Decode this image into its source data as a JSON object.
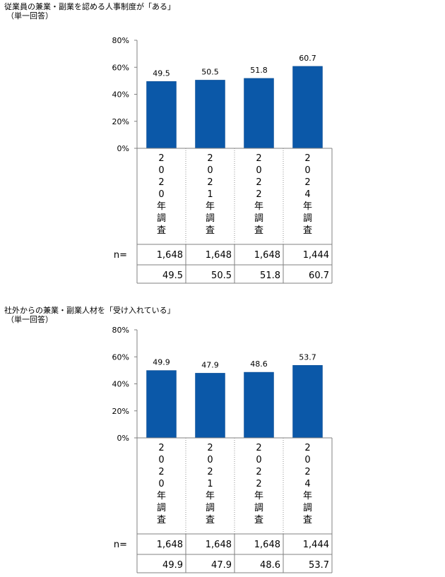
{
  "charts": [
    {
      "title": "従業員の兼業・副業を認める人事制度が「ある」",
      "note": "（単一回答）",
      "n_label": "n=",
      "chart_data": {
        "type": "bar",
        "categories": [
          "2020年調査",
          "2021年調査",
          "2022年調査",
          "2024年調査"
        ],
        "values": [
          49.5,
          50.5,
          51.8,
          60.7
        ],
        "n": [
          "1,648",
          "1,648",
          "1,648",
          "1,444"
        ],
        "table_values": [
          "49.5",
          "50.5",
          "51.8",
          "60.7"
        ],
        "ylim": [
          0,
          80
        ],
        "yticks": [
          "0%",
          "20%",
          "40%",
          "60%",
          "80%"
        ],
        "bar_color": "#0b58a8",
        "grid": false,
        "legend": "none"
      }
    },
    {
      "title": "社外からの兼業・副業人材を「受け入れている」",
      "note": "（単一回答）",
      "n_label": "n=",
      "chart_data": {
        "type": "bar",
        "categories": [
          "2020年調査",
          "2021年調査",
          "2022年調査",
          "2024年調査"
        ],
        "values": [
          49.9,
          47.9,
          48.6,
          53.7
        ],
        "n": [
          "1,648",
          "1,648",
          "1,648",
          "1,444"
        ],
        "table_values": [
          "49.9",
          "47.9",
          "48.6",
          "53.7"
        ],
        "ylim": [
          0,
          80
        ],
        "yticks": [
          "0%",
          "20%",
          "40%",
          "60%",
          "80%"
        ],
        "bar_color": "#0b58a8",
        "grid": false,
        "legend": "none"
      }
    }
  ]
}
